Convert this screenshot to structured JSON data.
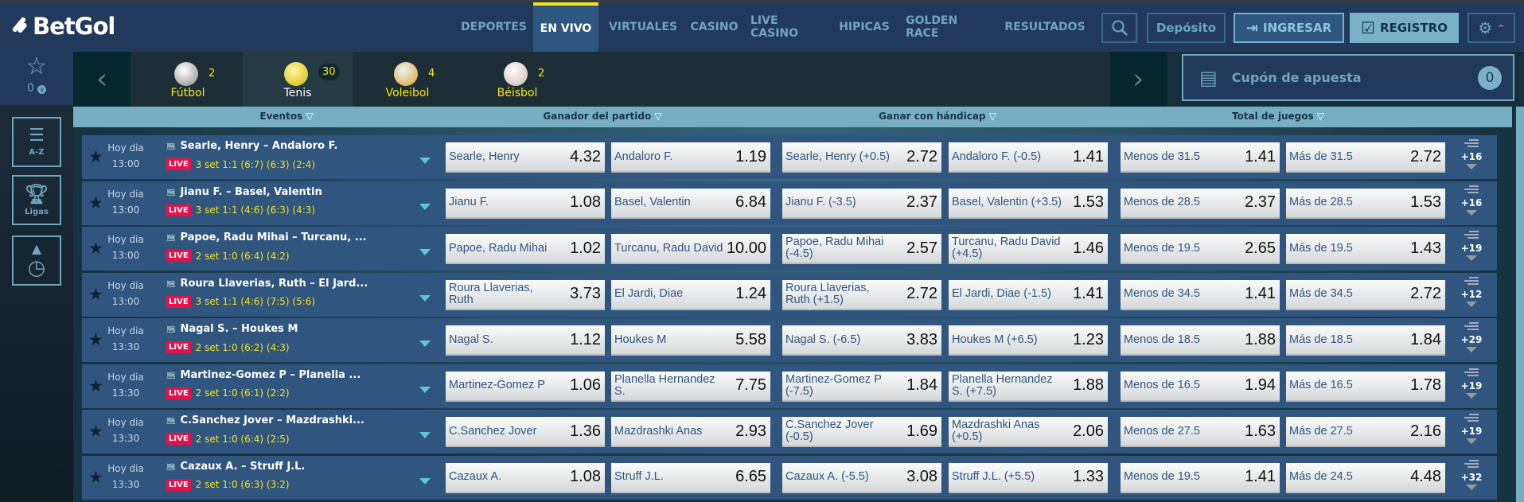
{
  "header": {
    "logo": "BetGol",
    "nav": [
      {
        "label": "DEPORTES",
        "active": false
      },
      {
        "label": "EN VIVO",
        "active": true
      },
      {
        "label": "VIRTUALES",
        "active": false
      },
      {
        "label": "CASINO",
        "active": false
      },
      {
        "label": "LIVE CASINO",
        "active": false
      },
      {
        "label": "HIPICAS",
        "active": false
      },
      {
        "label": "GOLDEN RACE",
        "active": false
      },
      {
        "label": "RESULTADOS",
        "active": false
      }
    ],
    "deposit": "Depósito",
    "login": "INGRESAR",
    "register": "REGISTRO"
  },
  "favorites": {
    "count": "0"
  },
  "sidebar": {
    "az": "A-Z",
    "ligas": "Ligas"
  },
  "sports": [
    {
      "name": "Fútbol",
      "count": "2"
    },
    {
      "name": "Tenis",
      "count": "30",
      "selected": true
    },
    {
      "name": "Voleibol",
      "count": "4"
    },
    {
      "name": "Béisbol",
      "count": "2"
    }
  ],
  "cupon": {
    "label": "Cupón de apuesta",
    "count": "0"
  },
  "columns": {
    "eventos": "Eventos",
    "ganador": "Ganador del partido",
    "handicap": "Ganar con hándicap",
    "total": "Total de juegos"
  },
  "colors": {
    "accent": "#f2e51c",
    "live": "#e6104a",
    "header": "#213a5c",
    "row": "#30557f"
  },
  "events": [
    {
      "day": "Hoy dia",
      "time": "13:00",
      "teams": "Searle, Henry – Andaloro F.",
      "score": "3 set 1:1 (6:7) (6:3) (2:4)",
      "odds": [
        [
          "Searle, Henry",
          "4.32"
        ],
        [
          "Andaloro F.",
          "1.19"
        ],
        [
          "Searle, Henry (+0.5)",
          "2.72"
        ],
        [
          "Andaloro F. (-0.5)",
          "1.41"
        ],
        [
          "Menos de 31.5",
          "1.41"
        ],
        [
          "Más de 31.5",
          "2.72"
        ]
      ],
      "more": "+16"
    },
    {
      "day": "Hoy dia",
      "time": "13:00",
      "teams": "Jianu F. – Basel, Valentin",
      "score": "3 set 1:1 (4:6) (6:3) (4:3)",
      "odds": [
        [
          "Jianu F.",
          "1.08"
        ],
        [
          "Basel, Valentin",
          "6.84"
        ],
        [
          "Jianu F. (-3.5)",
          "2.37"
        ],
        [
          "Basel, Valentin (+3.5)",
          "1.53"
        ],
        [
          "Menos de 28.5",
          "2.37"
        ],
        [
          "Más de 28.5",
          "1.53"
        ]
      ],
      "more": "+16"
    },
    {
      "day": "Hoy dia",
      "time": "13:00",
      "teams": "Papoe, Radu Mihai – Turcanu, ...",
      "score": "2 set 1:0 (6:4) (4:2)",
      "odds": [
        [
          "Papoe, Radu Mihai",
          "1.02"
        ],
        [
          "Turcanu, Radu David",
          "10.00"
        ],
        [
          "Papoe, Radu Mihai (-4.5)",
          "2.57"
        ],
        [
          "Turcanu, Radu David (+4.5)",
          "1.46"
        ],
        [
          "Menos de 19.5",
          "2.65"
        ],
        [
          "Más de 19.5",
          "1.43"
        ]
      ],
      "more": "+19"
    },
    {
      "day": "Hoy dia",
      "time": "13:00",
      "teams": "Roura Llaverias, Ruth – El Jard...",
      "score": "3 set 1:1 (4:6) (7:5) (5:6)",
      "odds": [
        [
          "Roura Llaverias, Ruth",
          "3.73"
        ],
        [
          "El Jardi, Diae",
          "1.24"
        ],
        [
          "Roura Llaverias, Ruth (+1.5)",
          "2.72"
        ],
        [
          "El Jardi, Diae (-1.5)",
          "1.41"
        ],
        [
          "Menos de 34.5",
          "1.41"
        ],
        [
          "Más de 34.5",
          "2.72"
        ]
      ],
      "more": "+12"
    },
    {
      "day": "Hoy dia",
      "time": "13:30",
      "teams": "Nagal S. – Houkes M",
      "score": "2 set 1:0 (6:2) (4:3)",
      "odds": [
        [
          "Nagal S.",
          "1.12"
        ],
        [
          "Houkes M",
          "5.58"
        ],
        [
          "Nagal S. (-6.5)",
          "3.83"
        ],
        [
          "Houkes M (+6.5)",
          "1.23"
        ],
        [
          "Menos de 18.5",
          "1.88"
        ],
        [
          "Más de 18.5",
          "1.84"
        ]
      ],
      "more": "+29"
    },
    {
      "day": "Hoy dia",
      "time": "13:30",
      "teams": "Martinez-Gomez P – Planella ...",
      "score": "2 set 1:0 (6:1) (2:2)",
      "odds": [
        [
          "Martinez-Gomez P",
          "1.06"
        ],
        [
          "Planella Hernandez S.",
          "7.75"
        ],
        [
          "Martinez-Gomez P (-7.5)",
          "1.84"
        ],
        [
          "Planella Hernandez S. (+7.5)",
          "1.88"
        ],
        [
          "Menos de 16.5",
          "1.94"
        ],
        [
          "Más de 16.5",
          "1.78"
        ]
      ],
      "more": "+19"
    },
    {
      "day": "Hoy dia",
      "time": "13:30",
      "teams": "C.Sanchez Jover – Mazdrashki...",
      "score": "2 set 1:0 (6:4) (2:5)",
      "odds": [
        [
          "C.Sanchez Jover",
          "1.36"
        ],
        [
          "Mazdrashki Anas",
          "2.93"
        ],
        [
          "C.Sanchez Jover (-0.5)",
          "1.69"
        ],
        [
          "Mazdrashki Anas (+0.5)",
          "2.06"
        ],
        [
          "Menos de 27.5",
          "1.63"
        ],
        [
          "Más de 27.5",
          "2.16"
        ]
      ],
      "more": "+19"
    },
    {
      "day": "Hoy dia",
      "time": "13:30",
      "teams": "Cazaux A. – Struff J.L.",
      "score": "2 set 1:0 (6:3) (3:2)",
      "odds": [
        [
          "Cazaux A.",
          "1.08"
        ],
        [
          "Struff J.L.",
          "6.65"
        ],
        [
          "Cazaux A. (-5.5)",
          "3.08"
        ],
        [
          "Struff J.L. (+5.5)",
          "1.33"
        ],
        [
          "Menos de 19.5",
          "1.41"
        ],
        [
          "Más de 24.5",
          "4.48"
        ]
      ],
      "more": "+32"
    }
  ],
  "live_label": "LIVE"
}
